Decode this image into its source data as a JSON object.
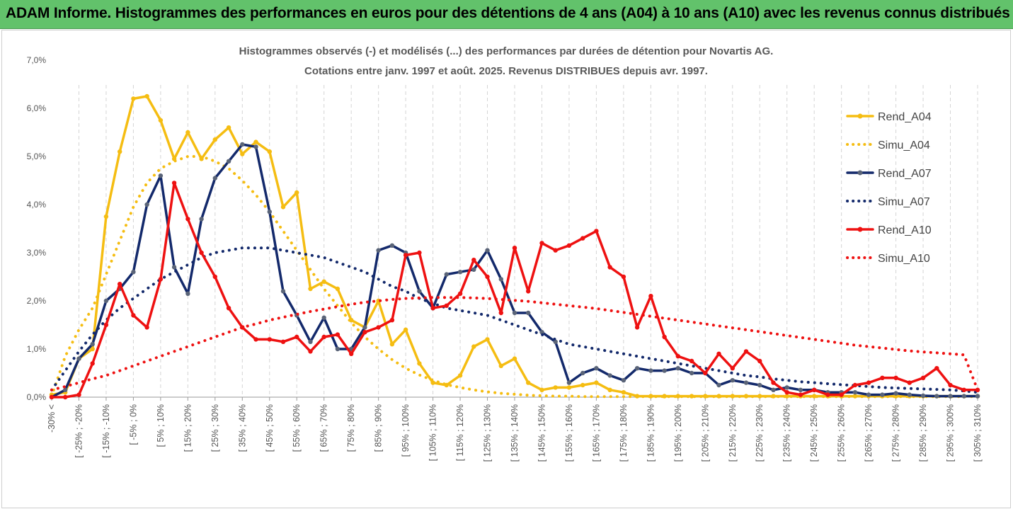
{
  "banner": {
    "title": "ADAM Informe. Histogrammes des performances en euros pour des détentions de 4 ans (A04) à 10 ans (A10) avec les revenus connus distribués"
  },
  "colors": {
    "banner_bg": "#62c26b",
    "A04": "#f5bd12",
    "A07": "#13296b",
    "A10": "#ee1111"
  },
  "chart_data": {
    "type": "line",
    "title": "Histogrammes observés (-) et modélisés (...) des performances par durées de détention pour Novartis AG.",
    "subtitle": "Cotations entre janv. 1997 et août. 2025. Revenus DISTRIBUES depuis avr. 1997.",
    "ylim": [
      0,
      7
    ],
    "y_ticks": [
      "0,0%",
      "1,0%",
      "2,0%",
      "3,0%",
      "4,0%",
      "5,0%",
      "6,0%",
      "7,0%"
    ],
    "legend_position": "right",
    "grid": "vertical dashed",
    "x_tick_labels": [
      "-30% <",
      "[ -25% ; -20%",
      "[ -15% ; -10%",
      "[ -5% ; 0%",
      "[ 5% ; 10%",
      "[ 15% ; 20%",
      "[ 25% ; 30%",
      "[ 35% ; 40%",
      "[ 45% ; 50%",
      "[ 55% ; 60%",
      "[ 65% ; 70%",
      "[ 75% ; 80%",
      "[ 85% ; 90%",
      "[ 95% ; 100%",
      "[ 105% ; 110%",
      "[ 115% ; 120%",
      "[ 125% ; 130%",
      "[ 135% ; 140%",
      "[ 145% ; 150%",
      "[ 155% ; 160%",
      "[ 165% ; 170%",
      "[ 175% ; 180%",
      "[ 185% ; 190%",
      "[ 195% ; 200%",
      "[ 205% ; 210%",
      "[ 215% ; 220%",
      "[ 225% ; 230%",
      "[ 235% ; 240%",
      "[ 245% ; 250%",
      "[ 255% ; 260%",
      "[ 265% ; 270%",
      "[ 275% ; 280%",
      "[ 285% ; 290%",
      "[ 295% ; 300%",
      "[ 305% ; 310%"
    ],
    "series": [
      {
        "name": "Rend_A04",
        "style": "solid",
        "color": "#f5bd12",
        "values": [
          0.05,
          0.1,
          0.8,
          1.0,
          3.75,
          5.1,
          6.2,
          6.25,
          5.75,
          4.95,
          5.5,
          4.95,
          5.35,
          5.6,
          5.05,
          5.3,
          5.1,
          3.95,
          4.25,
          2.25,
          2.4,
          2.25,
          1.6,
          1.45,
          2.0,
          1.1,
          1.4,
          0.7,
          0.3,
          0.25,
          0.45,
          1.05,
          1.2,
          0.65,
          0.8,
          0.3,
          0.15,
          0.2,
          0.2,
          0.25,
          0.3,
          0.15,
          0.1,
          0.02,
          0.02,
          0.02,
          0.02,
          0.02,
          0.02,
          0.02,
          0.02,
          0.02,
          0.02,
          0.02,
          0.02,
          0.02,
          0.02,
          0.02,
          0.02,
          0.02,
          0.02,
          0.02,
          0.02,
          0.02,
          0.02,
          0.02,
          0.02,
          0.02,
          0.02
        ]
      },
      {
        "name": "Simu_A04",
        "style": "dotted",
        "color": "#f5bd12",
        "values": [
          0.02,
          0.85,
          1.4,
          1.85,
          2.55,
          3.25,
          3.95,
          4.45,
          4.75,
          4.9,
          5.0,
          5.0,
          4.9,
          4.75,
          4.5,
          4.2,
          3.85,
          3.45,
          3.05,
          2.65,
          2.25,
          1.9,
          1.55,
          1.25,
          1.0,
          0.78,
          0.6,
          0.46,
          0.35,
          0.26,
          0.2,
          0.15,
          0.11,
          0.08,
          0.06,
          0.04,
          0.03,
          0.02,
          0.02,
          0.01,
          0.01,
          0.01,
          0.01,
          0.01,
          0.01,
          0.01,
          0.01,
          0.01,
          0.01,
          0.01,
          0.01,
          0.01,
          0.01,
          0.01,
          0.01,
          0.01,
          0.01,
          0.01,
          0.01,
          0.01,
          0.01,
          0.01,
          0.01,
          0.01,
          0.01,
          0.01,
          0.01,
          0.01,
          0.01
        ]
      },
      {
        "name": "Rend_A07",
        "style": "solid",
        "color": "#13296b",
        "values": [
          0.0,
          0.15,
          0.8,
          1.1,
          2.0,
          2.25,
          2.6,
          4.0,
          4.6,
          2.7,
          2.15,
          3.7,
          4.55,
          4.9,
          5.25,
          5.2,
          3.85,
          2.2,
          1.7,
          1.15,
          1.65,
          1.0,
          1.0,
          1.45,
          3.05,
          3.15,
          3.0,
          2.2,
          1.85,
          2.55,
          2.6,
          2.65,
          3.05,
          2.45,
          1.75,
          1.75,
          1.35,
          1.15,
          0.3,
          0.5,
          0.6,
          0.45,
          0.35,
          0.6,
          0.55,
          0.55,
          0.6,
          0.5,
          0.5,
          0.25,
          0.35,
          0.3,
          0.25,
          0.15,
          0.2,
          0.15,
          0.15,
          0.1,
          0.1,
          0.1,
          0.05,
          0.05,
          0.08,
          0.05,
          0.03,
          0.02,
          0.02,
          0.02,
          0.02
        ]
      },
      {
        "name": "Simu_A07",
        "style": "dotted",
        "color": "#13296b",
        "values": [
          0.15,
          0.55,
          0.95,
          1.3,
          1.6,
          1.85,
          2.05,
          2.25,
          2.45,
          2.6,
          2.75,
          2.9,
          3.0,
          3.05,
          3.1,
          3.1,
          3.1,
          3.05,
          3.0,
          2.95,
          2.9,
          2.8,
          2.7,
          2.6,
          2.45,
          2.3,
          2.2,
          2.05,
          1.95,
          1.85,
          1.8,
          1.75,
          1.7,
          1.6,
          1.5,
          1.4,
          1.3,
          1.2,
          1.1,
          1.05,
          1.0,
          0.95,
          0.9,
          0.85,
          0.8,
          0.75,
          0.7,
          0.65,
          0.6,
          0.55,
          0.5,
          0.45,
          0.42,
          0.38,
          0.35,
          0.32,
          0.3,
          0.28,
          0.26,
          0.24,
          0.22,
          0.2,
          0.19,
          0.18,
          0.17,
          0.16,
          0.15,
          0.13,
          0.1
        ]
      },
      {
        "name": "Rend_A10",
        "style": "solid",
        "color": "#ee1111",
        "values": [
          0.0,
          0.0,
          0.05,
          0.7,
          1.5,
          2.35,
          1.7,
          1.45,
          2.45,
          4.45,
          3.7,
          3.0,
          2.5,
          1.85,
          1.45,
          1.2,
          1.2,
          1.15,
          1.25,
          0.95,
          1.25,
          1.3,
          0.9,
          1.35,
          1.45,
          1.6,
          2.95,
          3.0,
          1.85,
          1.9,
          2.15,
          2.85,
          2.5,
          1.75,
          3.1,
          2.2,
          3.2,
          3.05,
          3.15,
          3.3,
          3.45,
          2.7,
          2.5,
          1.45,
          2.1,
          1.25,
          0.85,
          0.75,
          0.5,
          0.9,
          0.6,
          0.95,
          0.75,
          0.3,
          0.1,
          0.05,
          0.15,
          0.05,
          0.05,
          0.25,
          0.3,
          0.4,
          0.4,
          0.3,
          0.4,
          0.6,
          0.25,
          0.15,
          0.15
        ]
      },
      {
        "name": "Simu_A10",
        "style": "dotted",
        "color": "#ee1111",
        "values": [
          0.15,
          0.22,
          0.3,
          0.38,
          0.45,
          0.55,
          0.65,
          0.75,
          0.85,
          0.95,
          1.05,
          1.15,
          1.25,
          1.35,
          1.45,
          1.52,
          1.6,
          1.66,
          1.72,
          1.78,
          1.83,
          1.88,
          1.93,
          1.97,
          2.0,
          2.03,
          2.05,
          2.06,
          2.07,
          2.07,
          2.07,
          2.06,
          2.05,
          2.03,
          2.01,
          1.99,
          1.96,
          1.93,
          1.9,
          1.87,
          1.84,
          1.8,
          1.76,
          1.72,
          1.68,
          1.64,
          1.6,
          1.56,
          1.52,
          1.48,
          1.44,
          1.4,
          1.36,
          1.32,
          1.28,
          1.24,
          1.2,
          1.16,
          1.12,
          1.08,
          1.05,
          1.02,
          0.99,
          0.96,
          0.94,
          0.92,
          0.9,
          0.88,
          0.15
        ]
      }
    ]
  }
}
